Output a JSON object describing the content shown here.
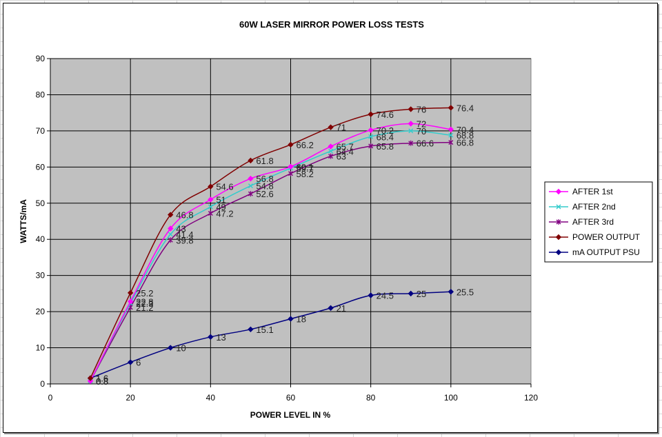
{
  "chart_data": {
    "type": "line",
    "title": "60W LASER MIRROR POWER LOSS TESTS",
    "xlabel": "POWER LEVEL IN %",
    "ylabel": "WATTS/mA",
    "xlim": [
      0,
      120
    ],
    "ylim": [
      0,
      90
    ],
    "xticks": [
      0,
      20,
      40,
      60,
      80,
      100,
      120
    ],
    "yticks": [
      0,
      10,
      20,
      30,
      40,
      50,
      60,
      70,
      80,
      90
    ],
    "grid": true,
    "legend_position": "right",
    "plot_background": "#c0c0c0",
    "series": [
      {
        "name": "AFTER 1st",
        "color": "#ff00ff",
        "marker": "diamond",
        "points": [
          [
            10,
            0.8
          ],
          [
            20,
            22.8
          ],
          [
            30,
            43
          ],
          [
            40,
            51
          ],
          [
            50,
            56.8
          ],
          [
            60,
            60.1
          ],
          [
            70,
            65.7
          ],
          [
            80,
            70.2
          ],
          [
            90,
            72
          ],
          [
            100,
            70.4
          ]
        ],
        "labels": [
          "0.8",
          "22.8",
          "43",
          "51",
          "56.8",
          "60.1",
          "65.7",
          "70.2",
          "72",
          "70.4"
        ]
      },
      {
        "name": "AFTER 2nd",
        "color": "#33cccc",
        "marker": "x",
        "points": [
          [
            10,
            0.8
          ],
          [
            20,
            22.3
          ],
          [
            30,
            41.4
          ],
          [
            40,
            49
          ],
          [
            50,
            54.8
          ],
          [
            60,
            59.7
          ],
          [
            70,
            64.4
          ],
          [
            80,
            68.4
          ],
          [
            90,
            70
          ],
          [
            100,
            68.8
          ]
        ],
        "labels": [
          "0.8",
          "22.3",
          "41.4",
          "49",
          "54.8",
          "59.7",
          "64.4",
          "68.4",
          "70",
          "68.8"
        ]
      },
      {
        "name": "AFTER 3rd",
        "color": "#800080",
        "marker": "star",
        "points": [
          [
            10,
            0.8
          ],
          [
            20,
            21.2
          ],
          [
            30,
            39.8
          ],
          [
            40,
            47.2
          ],
          [
            50,
            52.6
          ],
          [
            60,
            58.2
          ],
          [
            70,
            63
          ],
          [
            80,
            65.8
          ],
          [
            90,
            66.6
          ],
          [
            100,
            66.8
          ]
        ],
        "labels": [
          "0.8",
          "21.2",
          "39.8",
          "47.2",
          "52.6",
          "58.2",
          "63",
          "65.8",
          "66.6",
          "66.8"
        ]
      },
      {
        "name": "POWER OUTPUT",
        "color": "#800000",
        "marker": "diamond",
        "points": [
          [
            10,
            1.6
          ],
          [
            20,
            25.2
          ],
          [
            30,
            46.8
          ],
          [
            40,
            54.6
          ],
          [
            50,
            61.8
          ],
          [
            60,
            66.2
          ],
          [
            70,
            71
          ],
          [
            80,
            74.6
          ],
          [
            90,
            76
          ],
          [
            100,
            76.4
          ]
        ],
        "labels": [
          "1.6",
          "25.2",
          "46.8",
          "54.6",
          "61.8",
          "66.2",
          "71",
          "74.6",
          "76",
          "76.4"
        ]
      },
      {
        "name": "mA OUTPUT PSU",
        "color": "#000080",
        "marker": "diamond",
        "points": [
          [
            10,
            1.6
          ],
          [
            20,
            6
          ],
          [
            30,
            10
          ],
          [
            40,
            13
          ],
          [
            50,
            15.1
          ],
          [
            60,
            18
          ],
          [
            70,
            21
          ],
          [
            80,
            24.5
          ],
          [
            90,
            25
          ],
          [
            100,
            25.5
          ]
        ],
        "labels": [
          "1.6",
          "6",
          "10",
          "13",
          "15.1",
          "18",
          "21",
          "24.5",
          "25",
          "25.5"
        ]
      }
    ]
  }
}
